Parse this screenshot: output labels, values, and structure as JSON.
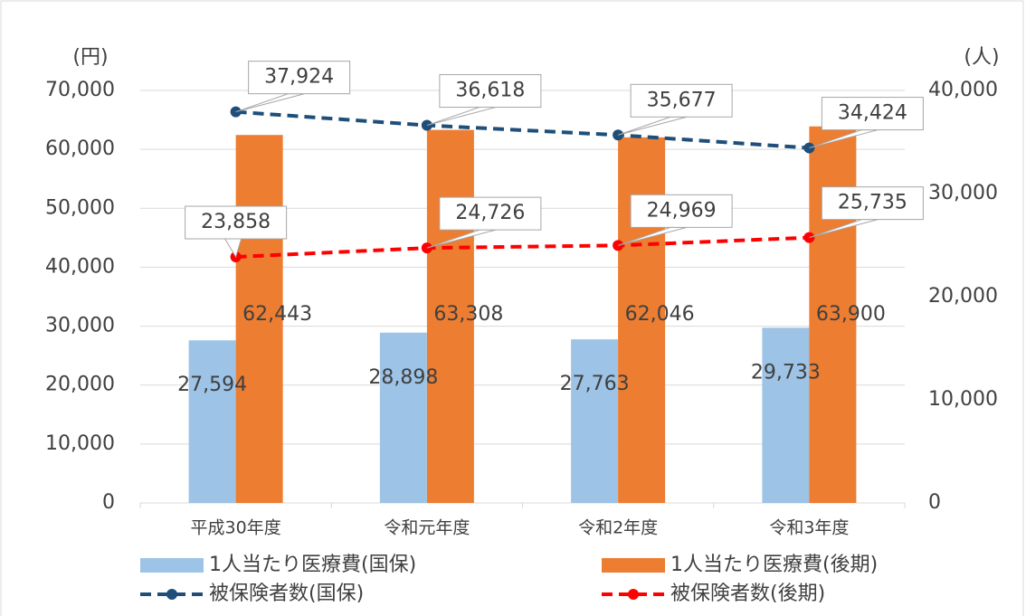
{
  "chart_data": {
    "type": "bar",
    "y_label": "(円)",
    "y2_label": "(人)",
    "categories": [
      "平成30年度",
      "令和元年度",
      "令和2年度",
      "令和3年度"
    ],
    "series": [
      {
        "name": "1人当たり医療費(国保)",
        "type": "bar",
        "color": "#9dc3e6",
        "values": [
          27594,
          28898,
          27763,
          29733
        ],
        "value_labels": [
          "27,594",
          "28,898",
          "27,763",
          "29,733"
        ]
      },
      {
        "name": "1人当たり医療費(後期)",
        "type": "bar",
        "color": "#ed7d31",
        "values": [
          62443,
          63308,
          62046,
          63900
        ],
        "value_labels": [
          "62,443",
          "63,308",
          "62,046",
          "63,900"
        ]
      },
      {
        "name": "被保険者数(国保)",
        "type": "line",
        "axis": "y2",
        "dashed": true,
        "color": "#1f4e79",
        "values": [
          37924,
          36618,
          35677,
          34424
        ],
        "value_labels": [
          "37,924",
          "36,618",
          "35,677",
          "34,424"
        ]
      },
      {
        "name": "被保険者数(後期)",
        "type": "line",
        "axis": "y2",
        "dashed": true,
        "color": "#ff0000",
        "values": [
          23858,
          24726,
          24969,
          25735
        ],
        "value_labels": [
          "23,858",
          "24,726",
          "24,969",
          "25,735"
        ]
      }
    ],
    "ylim": [
      0,
      70000
    ],
    "yticks": [
      0,
      {
        "value": 10000,
        "label": "10,000"
      },
      {
        "value": 20000,
        "label": "20,000"
      },
      {
        "value": 30000,
        "label": "30,000"
      },
      {
        "value": 40000,
        "label": "40,000"
      },
      {
        "value": 50000,
        "label": "50,000"
      },
      {
        "value": 60000,
        "label": "60,000"
      },
      {
        "value": 70000,
        "label": "70,000"
      }
    ],
    "y2lim": [
      0,
      40000
    ],
    "y2ticks": [
      0,
      {
        "value": 10000,
        "label": "10,000"
      },
      {
        "value": 20000,
        "label": "20,000"
      },
      {
        "value": 30000,
        "label": "30,000"
      },
      {
        "value": 40000,
        "label": "40,000"
      }
    ],
    "grid": true
  }
}
